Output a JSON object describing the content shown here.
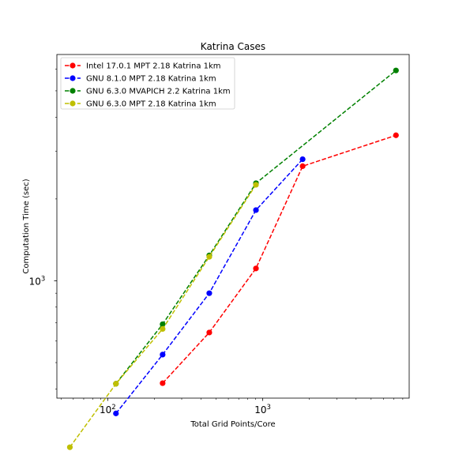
{
  "chart_data": {
    "type": "line",
    "title": "Katrina Cases",
    "xlabel": "Total Grid Points/Core",
    "ylabel": "Computation Time (sec)",
    "xscale": "log",
    "yscale": "log",
    "xlim": [
      47,
      8800
    ],
    "ylim": [
      370,
      6800
    ],
    "xticks": [
      {
        "value": 100,
        "base": "10",
        "exp": "2"
      },
      {
        "value": 1000,
        "base": "10",
        "exp": "3"
      }
    ],
    "yticks": [
      {
        "value": 1000,
        "base": "10",
        "exp": "3"
      }
    ],
    "grid": false,
    "legend_position": "upper-left",
    "series": [
      {
        "name": "Intel 17.0.1 MPT 2.18 Katrina 1km",
        "color": "#ff0000",
        "x": [
          226,
          452,
          904,
          1808,
          7232
        ],
        "y": [
          420,
          645,
          1110,
          2640,
          3430
        ]
      },
      {
        "name": "GNU 8.1.0 MPT 2.18 Katrina 1km",
        "color": "#0000ff",
        "x": [
          113,
          226,
          452,
          904,
          1808
        ],
        "y": [
          325,
          535,
          900,
          1820,
          2800
        ]
      },
      {
        "name": "GNU 6.3.0 MVAPICH 2.2 Katrina 1km",
        "color": "#008000",
        "x": [
          113,
          226,
          452,
          904,
          7232
        ],
        "y": [
          418,
          692,
          1240,
          2285,
          5940
        ]
      },
      {
        "name": "GNU 6.3.0 MPT 2.18 Katrina 1km",
        "color": "#bfbf00",
        "x": [
          57,
          113,
          226,
          452,
          904
        ],
        "y": [
          244,
          418,
          665,
          1225,
          2255
        ]
      }
    ]
  }
}
